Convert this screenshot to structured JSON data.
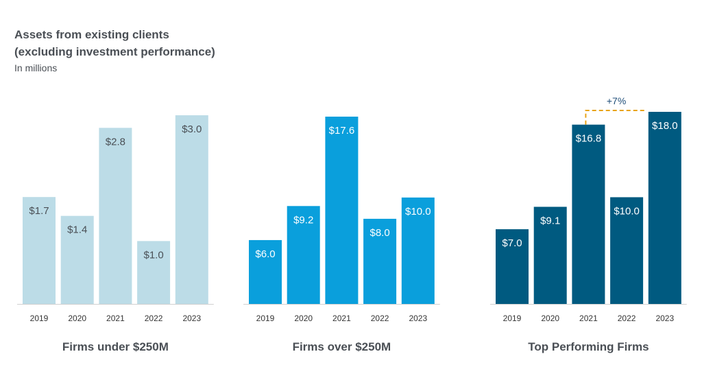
{
  "title_line1": "Assets from existing clients",
  "title_line2": "(excluding investment performance)",
  "subtitle": "In millions",
  "chart_data": [
    {
      "type": "bar",
      "title": "Firms under $250M",
      "categories": [
        "2019",
        "2020",
        "2021",
        "2022",
        "2023"
      ],
      "values": [
        1.7,
        1.4,
        2.8,
        1.0,
        3.0
      ],
      "labels": [
        "$1.7",
        "$1.4",
        "$2.8",
        "$1.0",
        "$3.0"
      ],
      "color": "#bcdce7",
      "label_color": "#4a4f55",
      "ylim": [
        0,
        3.0
      ]
    },
    {
      "type": "bar",
      "title": "Firms over $250M",
      "categories": [
        "2019",
        "2020",
        "2021",
        "2022",
        "2023"
      ],
      "values": [
        6.0,
        9.2,
        17.6,
        8.0,
        10.0
      ],
      "labels": [
        "$6.0",
        "$9.2",
        "$17.6",
        "$8.0",
        "$10.0"
      ],
      "color": "#0a9fdc",
      "label_color": "#ffffff",
      "ylim": [
        0,
        17.6
      ]
    },
    {
      "type": "bar",
      "title": "Top Performing Firms",
      "categories": [
        "2019",
        "2020",
        "2021",
        "2022",
        "2023"
      ],
      "values": [
        7.0,
        9.1,
        16.8,
        10.0,
        18.0
      ],
      "labels": [
        "$7.0",
        "$9.1",
        "$16.8",
        "$10.0",
        "$18.0"
      ],
      "color": "#005a80",
      "label_color": "#ffffff",
      "ylim": [
        0,
        18.0
      ],
      "annotation": {
        "text": "+7%",
        "from": "2021",
        "to": "2023",
        "color": "#e8a317",
        "text_color": "#1f4e79"
      }
    }
  ]
}
